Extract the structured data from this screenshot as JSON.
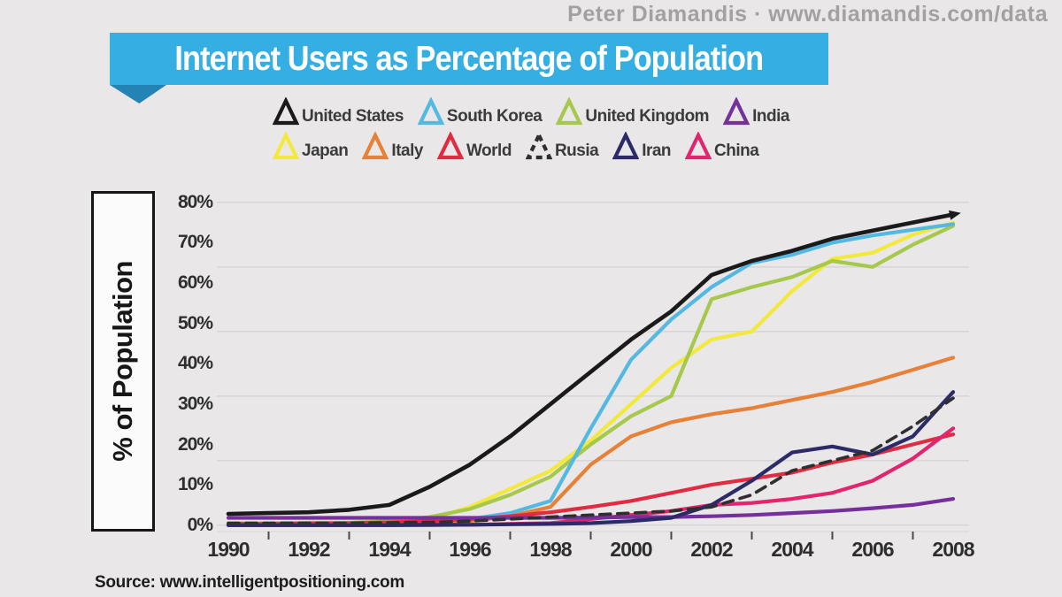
{
  "header": {
    "credit": "Peter Diamandis  ·  www.diamandis.com/data"
  },
  "title": "Internet Users as Percentage of Population",
  "y_axis_box_label": "% of Population",
  "source": "Source: www.intelligentpositioning.com",
  "colors": {
    "background": "#e9e7e8",
    "banner": "#35aee3",
    "banner_fold": "#2383b4",
    "gridline": "#d8d6d7",
    "axis_tick": "#4a4a4a",
    "credit_text": "#a2a0a1",
    "legend_text": "#3b3b3b"
  },
  "chart_data": {
    "type": "line",
    "title": "Internet Users as Percentage of Population",
    "xlabel": "",
    "ylabel": "% of Population",
    "ylim": [
      0,
      80
    ],
    "grid": "horizontal gridlines at 16% intervals (0,16,32,48,64,80)",
    "gridline_values": [
      80,
      64,
      48,
      32,
      16,
      0
    ],
    "legend_position": "top",
    "x": [
      1990,
      1991,
      1992,
      1993,
      1994,
      1995,
      1996,
      1997,
      1998,
      1999,
      2000,
      2001,
      2002,
      2003,
      2004,
      2005,
      2006,
      2007,
      2008
    ],
    "x_tick_values": [
      1990,
      1992,
      1994,
      1996,
      1998,
      2000,
      2002,
      2004,
      2006,
      2008
    ],
    "x_tick_labels": [
      "1990",
      "1992",
      "1994",
      "1996",
      "1998",
      "2000",
      "2002",
      "2004",
      "2006",
      "2008"
    ],
    "y_tick_values": [
      80,
      70,
      60,
      50,
      40,
      30,
      20,
      10,
      0
    ],
    "y_tick_labels": [
      "80%",
      "70%",
      "60%",
      "50%",
      "40%",
      "30%",
      "20%",
      "10%",
      "0%"
    ],
    "series": [
      {
        "name": "United States",
        "color": "#1a1a1a",
        "dashed": false,
        "arrow": true,
        "legend_row": 1,
        "values": [
          2.8,
          3,
          3.2,
          3.8,
          5,
          9.5,
          15,
          22,
          30,
          38,
          46,
          53,
          62,
          65.5,
          68,
          71,
          73,
          75,
          77
        ]
      },
      {
        "name": "South Korea",
        "color": "#53b9e3",
        "dashed": false,
        "arrow": false,
        "legend_row": 1,
        "values": [
          0.3,
          0.3,
          0.4,
          0.4,
          0.5,
          0.8,
          1.5,
          3,
          6,
          24,
          41,
          51,
          59,
          65,
          67,
          70,
          71.8,
          73.2,
          74.6
        ]
      },
      {
        "name": "United Kingdom",
        "color": "#a6c84d",
        "dashed": false,
        "arrow": false,
        "legend_row": 1,
        "values": [
          0.5,
          0.5,
          0.6,
          0.6,
          1,
          2,
          4,
          7.5,
          12,
          20,
          27,
          32,
          56,
          59,
          61.5,
          65.5,
          64,
          69.5,
          74.2
        ]
      },
      {
        "name": "India",
        "color": "#76309b",
        "dashed": false,
        "arrow": false,
        "legend_row": 1,
        "values": [
          1.8,
          1.8,
          1.8,
          1.8,
          1.8,
          1.8,
          1.8,
          1.8,
          1.8,
          1.9,
          2,
          2,
          2.2,
          2.5,
          3,
          3.5,
          4.2,
          5,
          6.5
        ]
      },
      {
        "name": "Japan",
        "color": "#f3e93c",
        "dashed": false,
        "arrow": false,
        "legend_row": 2,
        "values": [
          0,
          0,
          0,
          0,
          0.3,
          1.5,
          4.5,
          9,
          13.5,
          21,
          30,
          39,
          46,
          48,
          58,
          66,
          67.5,
          72,
          75
        ]
      },
      {
        "name": "Italy",
        "color": "#e78138",
        "dashed": false,
        "arrow": false,
        "legend_row": 2,
        "values": [
          0,
          0,
          0.1,
          0.2,
          0.3,
          0.6,
          1,
          2.2,
          4.5,
          15,
          22,
          25.5,
          27.5,
          29,
          31,
          33,
          35.5,
          38.5,
          41.5
        ]
      },
      {
        "name": "World",
        "color": "#e12b41",
        "dashed": false,
        "arrow": false,
        "legend_row": 2,
        "values": [
          0.3,
          0.3,
          0.4,
          0.5,
          0.7,
          1,
          1.5,
          2.2,
          3.2,
          4.5,
          6,
          8,
          10,
          11.5,
          13,
          15.5,
          17.5,
          20,
          22.5
        ]
      },
      {
        "name": "Rusia",
        "color": "#2f2f2f",
        "dashed": true,
        "arrow": false,
        "legend_row": 2,
        "values": [
          0.5,
          0.5,
          0.5,
          0.5,
          0.6,
          0.7,
          1,
          1.5,
          2,
          2.5,
          3,
          3.5,
          4.5,
          7.5,
          13.5,
          16,
          18.5,
          24.5,
          31.5
        ]
      },
      {
        "name": "Iran",
        "color": "#2c2b68",
        "dashed": false,
        "arrow": false,
        "legend_row": 2,
        "values": [
          0,
          0,
          0,
          0,
          0,
          0.1,
          0.1,
          0.2,
          0.3,
          0.5,
          1,
          1.8,
          5,
          11,
          18,
          19.5,
          17.5,
          22,
          33
        ]
      },
      {
        "name": "China",
        "color": "#e2256e",
        "dashed": false,
        "arrow": false,
        "legend_row": 2,
        "values": [
          0,
          0,
          0,
          0,
          0,
          0,
          0.1,
          0.3,
          0.5,
          1.5,
          2.5,
          3.5,
          5,
          5.5,
          6.5,
          8,
          11,
          16.5,
          24
        ]
      }
    ]
  }
}
